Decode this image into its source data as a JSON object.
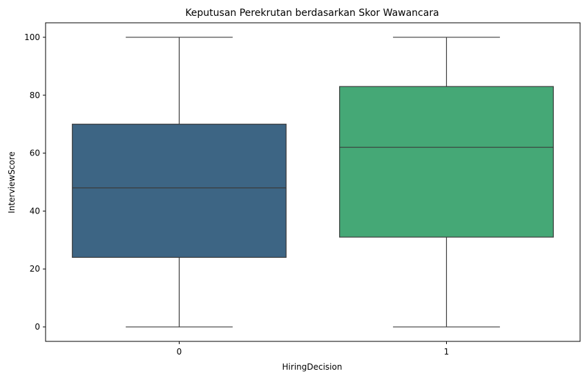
{
  "chart_data": {
    "type": "box",
    "title": "Keputusan Perekrutan berdasarkan Skor Wawancara",
    "xlabel": "HiringDecision",
    "ylabel": "InterviewScore",
    "categories": [
      "0",
      "1"
    ],
    "ylim": [
      -5,
      105
    ],
    "yticks": [
      0,
      20,
      40,
      60,
      80,
      100
    ],
    "grid": false,
    "series": [
      {
        "category": "0",
        "min": 0,
        "q1": 24,
        "median": 48,
        "q3": 70,
        "max": 100,
        "color": "#3d6584"
      },
      {
        "category": "1",
        "min": 0,
        "q1": 31,
        "median": 62,
        "q3": 83,
        "max": 100,
        "color": "#45a876"
      }
    ],
    "line_color": "#3a3a3a"
  }
}
